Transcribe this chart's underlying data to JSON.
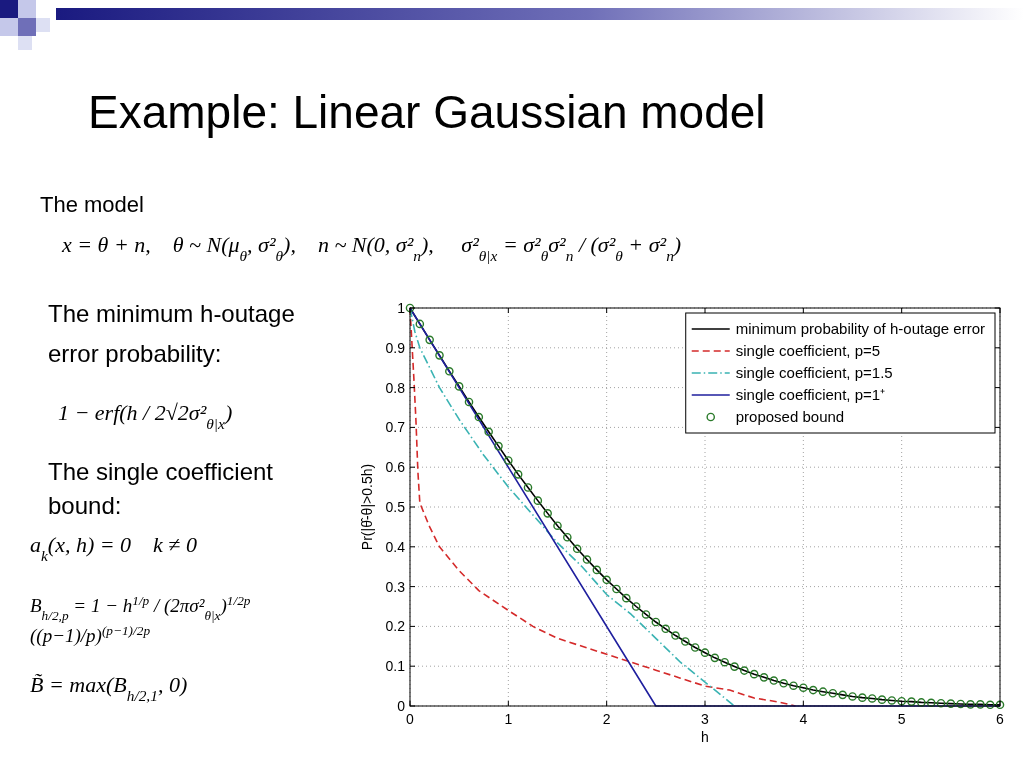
{
  "chart_data": {
    "type": "line",
    "title": "Example: Linear Gaussian model",
    "xlabel": "h",
    "ylabel": "Pr(|θ̂-θ|>0.5h)",
    "xlim": [
      0,
      6
    ],
    "ylim": [
      0,
      1
    ],
    "xticks": [
      0,
      1,
      2,
      3,
      4,
      5,
      6
    ],
    "yticks": [
      0,
      0.1,
      0.2,
      0.3,
      0.4,
      0.5,
      0.6,
      0.7,
      0.8,
      0.9,
      1
    ],
    "grid": true,
    "legend": "top right",
    "x": [
      0,
      0.1,
      0.2,
      0.3,
      0.4,
      0.5,
      0.6,
      0.7,
      0.8,
      0.9,
      1,
      1.1,
      1.2,
      1.3,
      1.4,
      1.5,
      1.6,
      1.7,
      1.8,
      1.9,
      2,
      2.1,
      2.2,
      2.3,
      2.4,
      2.5,
      2.6,
      2.7,
      2.8,
      2.9,
      3,
      3.1,
      3.2,
      3.3,
      3.4,
      3.5,
      3.6,
      3.7,
      3.8,
      3.9,
      4,
      4.1,
      4.2,
      4.3,
      4.4,
      4.5,
      4.6,
      4.7,
      4.8,
      4.9,
      5,
      5.1,
      5.2,
      5.3,
      5.4,
      5.5,
      5.6,
      5.7,
      5.8,
      5.9,
      6
    ],
    "series": [
      {
        "name": "minimum probability of h-outage error",
        "color": "#000000",
        "line_style": "solid",
        "values": [
          1,
          0.96,
          0.92,
          0.881,
          0.841,
          0.803,
          0.764,
          0.726,
          0.689,
          0.653,
          0.617,
          0.582,
          0.549,
          0.516,
          0.484,
          0.453,
          0.424,
          0.395,
          0.368,
          0.342,
          0.317,
          0.294,
          0.271,
          0.25,
          0.23,
          0.211,
          0.194,
          0.177,
          0.162,
          0.147,
          0.134,
          0.121,
          0.11,
          0.099,
          0.089,
          0.08,
          0.072,
          0.064,
          0.057,
          0.051,
          0.046,
          0.04,
          0.036,
          0.032,
          0.028,
          0.024,
          0.021,
          0.019,
          0.016,
          0.014,
          0.012,
          0.011,
          0.009,
          0.008,
          0.007,
          0.006,
          0.005,
          0.004,
          0.004,
          0.003,
          0.003
        ]
      },
      {
        "name": "single coefficient, p=5",
        "color": "#d42a2a",
        "line_style": "dashed",
        "x": [
          0,
          0.02,
          0.04,
          0.06,
          0.08,
          0.1,
          0.15,
          0.2,
          0.3,
          0.4,
          0.5,
          0.7,
          1,
          1.25,
          1.5,
          1.75,
          2,
          2.25,
          2.5,
          2.75,
          3,
          3.25,
          3.5,
          3.75,
          3.92
        ],
        "values": [
          1,
          0.91,
          0.82,
          0.72,
          0.59,
          0.51,
          0.48,
          0.45,
          0.4,
          0.37,
          0.34,
          0.29,
          0.24,
          0.2,
          0.17,
          0.15,
          0.13,
          0.11,
          0.09,
          0.07,
          0.05,
          0.04,
          0.02,
          0.01,
          0
        ]
      },
      {
        "name": "single coefficient, p=1.5",
        "color": "#3ab3b3",
        "line_style": "dashdot",
        "x": [
          0,
          0.05,
          0.1,
          0.2,
          0.3,
          0.5,
          0.75,
          1,
          1.25,
          1.5,
          1.75,
          2,
          2.25,
          2.5,
          2.75,
          3,
          3.25,
          3.3
        ],
        "values": [
          1,
          0.94,
          0.9,
          0.85,
          0.8,
          0.72,
          0.63,
          0.55,
          0.48,
          0.41,
          0.35,
          0.28,
          0.23,
          0.17,
          0.11,
          0.06,
          0.01,
          0
        ]
      },
      {
        "name": "single coefficient, p=1⁺",
        "color": "#1f1f9e",
        "line_style": "solid",
        "x": [
          0,
          2.5,
          6
        ],
        "values": [
          1,
          0,
          0
        ]
      },
      {
        "name": "proposed bound",
        "type": "scatter",
        "color": "#2a7a2a",
        "marker": "circle",
        "values": [
          1,
          0.96,
          0.92,
          0.881,
          0.841,
          0.803,
          0.764,
          0.726,
          0.689,
          0.653,
          0.617,
          0.582,
          0.549,
          0.516,
          0.484,
          0.453,
          0.424,
          0.395,
          0.368,
          0.342,
          0.317,
          0.294,
          0.271,
          0.25,
          0.23,
          0.211,
          0.194,
          0.177,
          0.162,
          0.147,
          0.134,
          0.121,
          0.11,
          0.099,
          0.089,
          0.08,
          0.072,
          0.064,
          0.057,
          0.051,
          0.046,
          0.04,
          0.036,
          0.032,
          0.028,
          0.024,
          0.021,
          0.019,
          0.016,
          0.014,
          0.012,
          0.011,
          0.009,
          0.008,
          0.007,
          0.006,
          0.005,
          0.004,
          0.004,
          0.003,
          0.003
        ]
      }
    ],
    "annotations": [
      "The model",
      "x = θ + n,    θ ~ N(μ$_{θ}$, σ²$_{θ}$),    n ~ N(0, σ²$_{n}$),     σ²$_{θ|x}$ = σ²$_{θ}$σ²$_{n}$ / (σ²$_{θ}$ + σ²$_{n}$)",
      "The minimum h-outage error probability:",
      "1 − erf(h / 2√2σ²$_{θ|x}$)",
      "The single coefficient bound:",
      "a$_{k}$(x, h) = 0    k ≠ 0",
      "B$_{h/2,p}$ = 1 − h$^{1/p}$ / (2πσ²$_{θ|x}$)$^{1/2p}$ ((p−1)/p)$^{(p−1)/2p}$",
      "B̃ = max(B$_{h/2,1}$, 0)"
    ]
  }
}
